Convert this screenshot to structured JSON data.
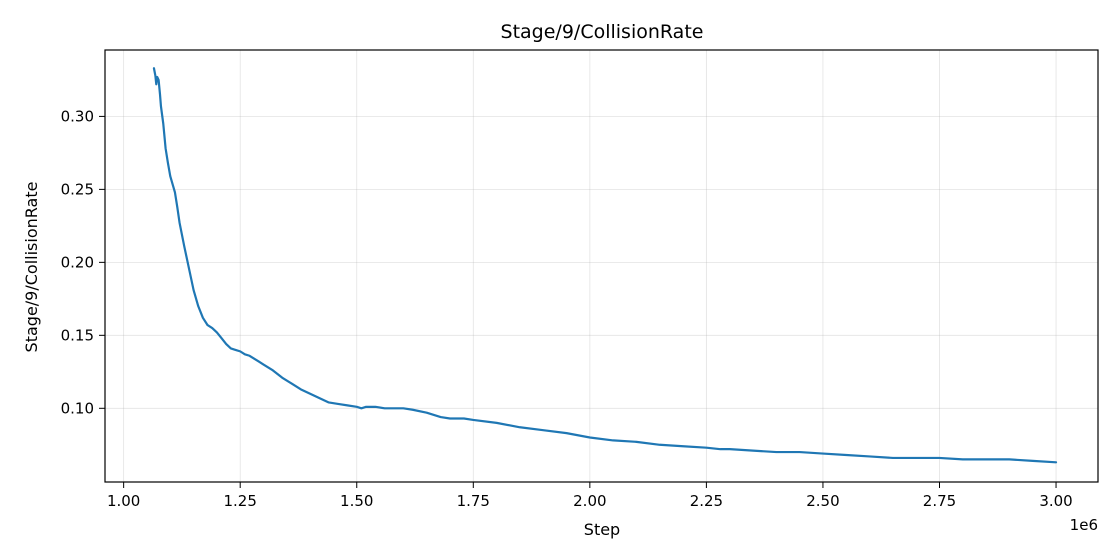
{
  "chart_data": {
    "type": "line",
    "title": "Stage/9/CollisionRate",
    "xlabel": "Step",
    "ylabel": "Stage/9/CollisionRate",
    "x_offset_label": "1e6",
    "xlim": [
      0.96,
      3.09
    ],
    "ylim": [
      0.0495,
      0.3455
    ],
    "x_ticks": [
      1.0,
      1.25,
      1.5,
      1.75,
      2.0,
      2.25,
      2.5,
      2.75,
      3.0
    ],
    "x_tick_labels": [
      "1.00",
      "1.25",
      "1.50",
      "1.75",
      "2.00",
      "2.25",
      "2.50",
      "2.75",
      "3.00"
    ],
    "y_ticks": [
      0.1,
      0.15,
      0.2,
      0.25,
      0.3
    ],
    "y_tick_labels": [
      "0.10",
      "0.15",
      "0.20",
      "0.25",
      "0.30"
    ],
    "grid": true,
    "color": "#1f77b4",
    "series": [
      {
        "x": [
          1.065,
          1.068,
          1.07,
          1.072,
          1.075,
          1.078,
          1.08,
          1.085,
          1.09,
          1.095,
          1.1,
          1.11,
          1.115,
          1.12,
          1.13,
          1.14,
          1.15,
          1.16,
          1.17,
          1.18,
          1.19,
          1.2,
          1.21,
          1.22,
          1.23,
          1.24,
          1.25,
          1.26,
          1.27,
          1.28,
          1.29,
          1.3,
          1.32,
          1.34,
          1.36,
          1.38,
          1.4,
          1.42,
          1.44,
          1.46,
          1.48,
          1.5,
          1.51,
          1.52,
          1.54,
          1.56,
          1.58,
          1.6,
          1.62,
          1.65,
          1.68,
          1.7,
          1.73,
          1.75,
          1.8,
          1.85,
          1.9,
          1.95,
          2.0,
          2.05,
          2.1,
          2.15,
          2.2,
          2.25,
          2.28,
          2.3,
          2.35,
          2.4,
          2.45,
          2.5,
          2.55,
          2.6,
          2.65,
          2.7,
          2.75,
          2.8,
          2.85,
          2.9,
          2.95,
          3.0
        ],
        "y": [
          0.333,
          0.328,
          0.322,
          0.327,
          0.325,
          0.315,
          0.307,
          0.295,
          0.278,
          0.268,
          0.259,
          0.248,
          0.238,
          0.227,
          0.211,
          0.196,
          0.181,
          0.17,
          0.162,
          0.157,
          0.155,
          0.152,
          0.148,
          0.144,
          0.141,
          0.14,
          0.139,
          0.137,
          0.136,
          0.134,
          0.132,
          0.13,
          0.126,
          0.121,
          0.117,
          0.113,
          0.11,
          0.107,
          0.104,
          0.103,
          0.102,
          0.101,
          0.1,
          0.101,
          0.101,
          0.1,
          0.1,
          0.1,
          0.099,
          0.097,
          0.094,
          0.093,
          0.093,
          0.092,
          0.09,
          0.087,
          0.085,
          0.083,
          0.08,
          0.078,
          0.077,
          0.075,
          0.074,
          0.073,
          0.072,
          0.072,
          0.071,
          0.07,
          0.07,
          0.069,
          0.068,
          0.067,
          0.066,
          0.066,
          0.066,
          0.065,
          0.065,
          0.065,
          0.064,
          0.063
        ]
      }
    ]
  }
}
